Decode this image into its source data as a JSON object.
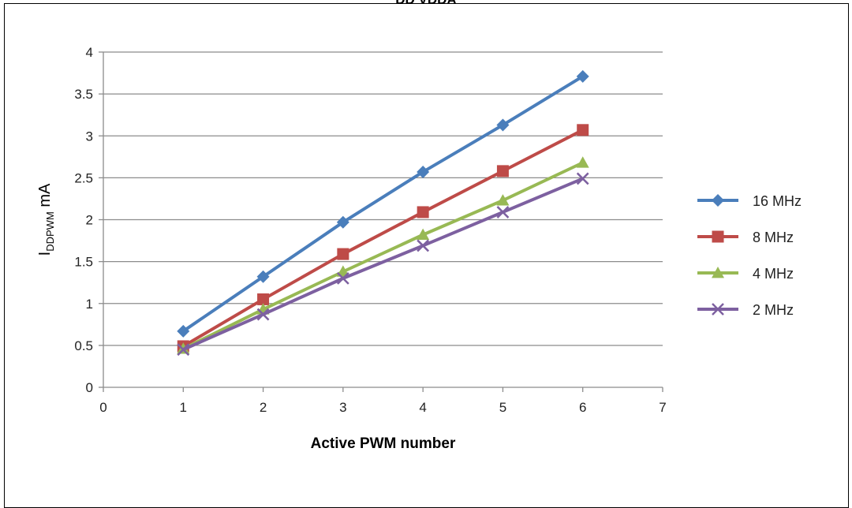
{
  "page": {
    "clipped_title": "DD VDDA"
  },
  "chart_data": {
    "type": "line",
    "title": "",
    "xlabel": "Active PWM number",
    "ylabel_main": "I",
    "ylabel_sub": "DDPWM",
    "ylabel_unit": " mA",
    "xlim": [
      0,
      7
    ],
    "ylim": [
      0,
      4
    ],
    "x_ticks": [
      0,
      1,
      2,
      3,
      4,
      5,
      6,
      7
    ],
    "y_ticks": [
      "0",
      "0.5",
      "1",
      "1.5",
      "2",
      "2.5",
      "3",
      "3.5",
      "4"
    ],
    "grid": "horizontal",
    "legend_position": "right",
    "x": [
      1,
      2,
      3,
      4,
      5,
      6
    ],
    "series": [
      {
        "name": "16 MHz",
        "color": "#4a7ebb",
        "marker": "diamond",
        "values": [
          0.67,
          1.32,
          1.97,
          2.57,
          3.13,
          3.71
        ]
      },
      {
        "name": "8 MHz",
        "color": "#be4b48",
        "marker": "square",
        "values": [
          0.49,
          1.05,
          1.59,
          2.09,
          2.58,
          3.07
        ]
      },
      {
        "name": "4 MHz",
        "color": "#98b954",
        "marker": "triangle",
        "values": [
          0.46,
          0.93,
          1.38,
          1.82,
          2.23,
          2.68
        ]
      },
      {
        "name": "2 MHz",
        "color": "#7d60a0",
        "marker": "x",
        "values": [
          0.45,
          0.87,
          1.3,
          1.69,
          2.09,
          2.49
        ]
      }
    ]
  }
}
